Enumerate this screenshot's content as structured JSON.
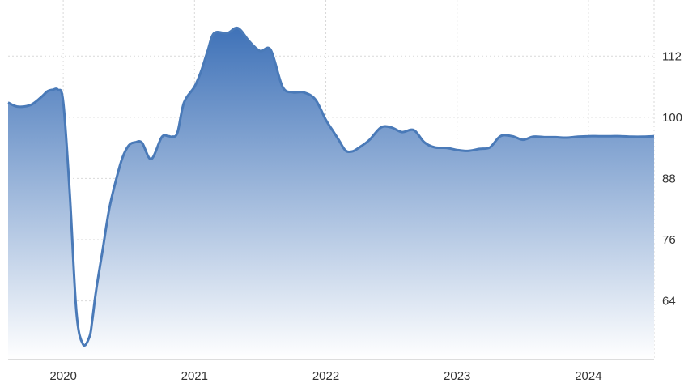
{
  "chart_data": {
    "type": "area",
    "title": "",
    "xlabel": "",
    "ylabel": "",
    "x_ticks": [
      "2020",
      "2021",
      "2022",
      "2023",
      "2024"
    ],
    "y_ticks": [
      64,
      76,
      88,
      100,
      112
    ],
    "ylim": [
      52.5,
      123
    ],
    "xlim": [
      2019.58,
      2024.5
    ],
    "grid": true,
    "legend": "none",
    "colors": {
      "line": "#4a7ab8",
      "fill_top": "#3f72b8",
      "fill_bottom": "#ffffff",
      "grid": "#d9d9d9"
    },
    "series": [
      {
        "x": [
          2019.58,
          2019.65,
          2019.75,
          2019.83,
          2019.88,
          2019.92,
          2019.96,
          2020.0,
          2020.05,
          2020.1,
          2020.15,
          2020.2,
          2020.22,
          2020.25,
          2020.3,
          2020.35,
          2020.4,
          2020.45,
          2020.5,
          2020.55,
          2020.6,
          2020.67,
          2020.75,
          2020.8,
          2020.83,
          2020.87,
          2020.92,
          2021.0,
          2021.05,
          2021.1,
          2021.15,
          2021.25,
          2021.33,
          2021.42,
          2021.5,
          2021.58,
          2021.67,
          2021.75,
          2021.83,
          2021.92,
          2022.0,
          2022.05,
          2022.1,
          2022.15,
          2022.2,
          2022.25,
          2022.33,
          2022.42,
          2022.5,
          2022.58,
          2022.67,
          2022.75,
          2022.83,
          2022.92,
          2023.0,
          2023.08,
          2023.17,
          2023.25,
          2023.33,
          2023.42,
          2023.5,
          2023.58,
          2023.67,
          2023.75,
          2023.83,
          2023.92,
          2024.0,
          2024.08,
          2024.17,
          2024.25,
          2024.33,
          2024.42,
          2024.5
        ],
        "y": [
          102.9,
          102.1,
          102.4,
          103.9,
          105.1,
          105.4,
          105.4,
          103.0,
          85.0,
          62.0,
          55.5,
          57.0,
          60.0,
          66.0,
          74.0,
          82.0,
          87.5,
          92.0,
          94.5,
          95.1,
          95.0,
          91.8,
          96.1,
          96.3,
          96.2,
          97.0,
          102.9,
          106.0,
          109.0,
          113.0,
          116.5,
          116.5,
          117.5,
          114.8,
          113.0,
          113.2,
          106.0,
          104.9,
          104.9,
          103.5,
          99.5,
          97.5,
          95.5,
          93.5,
          93.3,
          94.0,
          95.5,
          98.0,
          98.0,
          97.1,
          97.5,
          95.1,
          94.1,
          94.0,
          93.6,
          93.4,
          93.8,
          94.1,
          96.3,
          96.3,
          95.6,
          96.2,
          96.1,
          96.1,
          96.0,
          96.2,
          96.3,
          96.3,
          96.3,
          96.3,
          96.2,
          96.2,
          96.3
        ]
      }
    ]
  }
}
